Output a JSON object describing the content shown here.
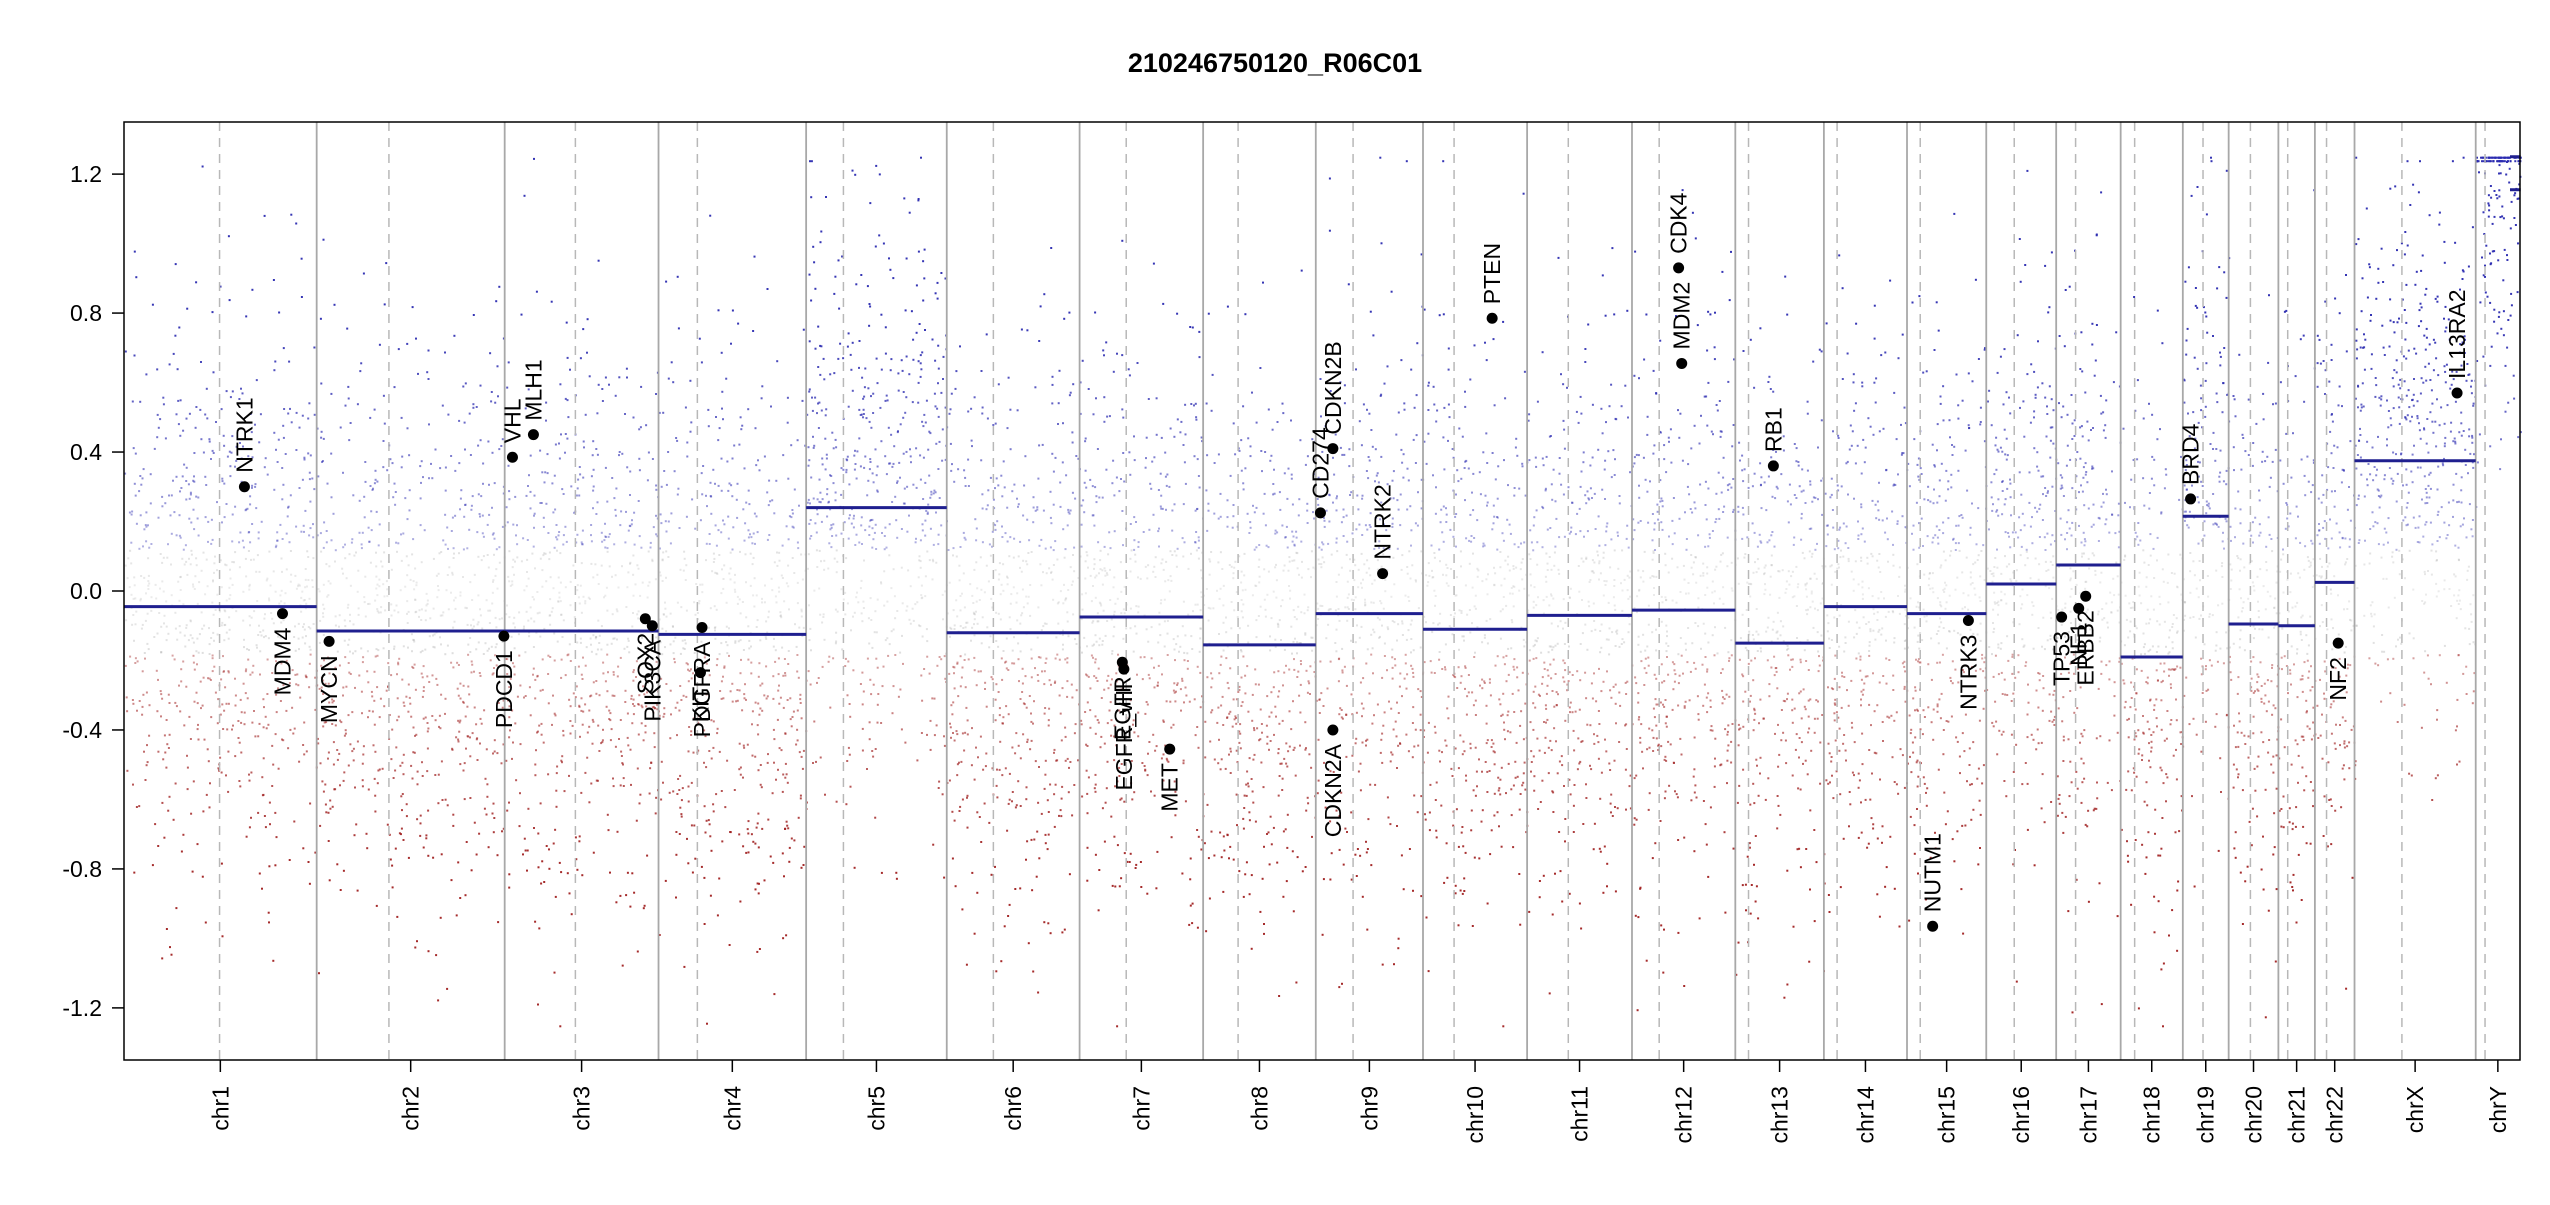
{
  "chart_data": {
    "type": "scatter",
    "title": "210246750120_R06C01",
    "xlabel": "",
    "ylabel": "",
    "ylim": [
      -1.35,
      1.35
    ],
    "y_ticks": [
      {
        "value": 1.2,
        "label": "1.2"
      },
      {
        "value": 0.8,
        "label": "0.8"
      },
      {
        "value": 0.4,
        "label": "0.4"
      },
      {
        "value": 0.0,
        "label": "0.0"
      },
      {
        "value": -0.4,
        "label": "-0.4"
      },
      {
        "value": -0.8,
        "label": "-0.8"
      },
      {
        "value": -1.2,
        "label": "-1.2"
      }
    ],
    "point_colors": {
      "gain": "#2a2ab0",
      "neutral": "#b0b0b0",
      "loss": "#a02020"
    },
    "segment_color": "#1f1f8f",
    "chromosomes": [
      {
        "name": "chr1",
        "start": 0,
        "end": 248,
        "centromere": 123,
        "segments": [
          {
            "s": 0,
            "e": 248,
            "v": -0.045
          }
        ]
      },
      {
        "name": "chr2",
        "start": 248,
        "end": 490,
        "centromere": 341,
        "segments": [
          {
            "s": 248,
            "e": 490,
            "v": -0.115
          }
        ]
      },
      {
        "name": "chr3",
        "start": 490,
        "end": 688,
        "centromere": 581,
        "segments": [
          {
            "s": 490,
            "e": 688,
            "v": -0.115
          }
        ]
      },
      {
        "name": "chr4",
        "start": 688,
        "end": 878,
        "centromere": 738,
        "segments": [
          {
            "s": 688,
            "e": 878,
            "v": -0.125
          }
        ]
      },
      {
        "name": "chr5",
        "start": 878,
        "end": 1059,
        "centromere": 926,
        "segments": [
          {
            "s": 878,
            "e": 1059,
            "v": 0.24
          }
        ]
      },
      {
        "name": "chr6",
        "start": 1059,
        "end": 1230,
        "centromere": 1119,
        "segments": [
          {
            "s": 1059,
            "e": 1230,
            "v": -0.12
          }
        ]
      },
      {
        "name": "chr7",
        "start": 1230,
        "end": 1389,
        "centromere": 1290,
        "segments": [
          {
            "s": 1230,
            "e": 1389,
            "v": -0.075
          }
        ]
      },
      {
        "name": "chr8",
        "start": 1389,
        "end": 1534,
        "centromere": 1434,
        "segments": [
          {
            "s": 1389,
            "e": 1534,
            "v": -0.155
          }
        ]
      },
      {
        "name": "chr9",
        "start": 1534,
        "end": 1672,
        "centromere": 1582,
        "segments": [
          {
            "s": 1534,
            "e": 1672,
            "v": -0.065
          }
        ]
      },
      {
        "name": "chr10",
        "start": 1672,
        "end": 1806,
        "centromere": 1712,
        "segments": [
          {
            "s": 1672,
            "e": 1806,
            "v": -0.11
          }
        ]
      },
      {
        "name": "chr11",
        "start": 1806,
        "end": 1941,
        "centromere": 1859,
        "segments": [
          {
            "s": 1806,
            "e": 1941,
            "v": -0.07
          }
        ]
      },
      {
        "name": "chr12",
        "start": 1941,
        "end": 2074,
        "centromere": 1976,
        "segments": [
          {
            "s": 1941,
            "e": 2074,
            "v": -0.055
          }
        ]
      },
      {
        "name": "chr13",
        "start": 2074,
        "end": 2188,
        "centromere": 2091,
        "segments": [
          {
            "s": 2074,
            "e": 2188,
            "v": -0.15
          }
        ]
      },
      {
        "name": "chr14",
        "start": 2188,
        "end": 2295,
        "centromere": 2205,
        "segments": [
          {
            "s": 2188,
            "e": 2295,
            "v": -0.045
          }
        ]
      },
      {
        "name": "chr15",
        "start": 2295,
        "end": 2397,
        "centromere": 2312,
        "segments": [
          {
            "s": 2295,
            "e": 2397,
            "v": -0.065
          }
        ]
      },
      {
        "name": "chr16",
        "start": 2397,
        "end": 2487,
        "centromere": 2433,
        "segments": [
          {
            "s": 2397,
            "e": 2487,
            "v": 0.02
          }
        ]
      },
      {
        "name": "chr17",
        "start": 2487,
        "end": 2570,
        "centromere": 2512,
        "segments": [
          {
            "s": 2487,
            "e": 2570,
            "v": 0.075
          }
        ]
      },
      {
        "name": "chr18",
        "start": 2570,
        "end": 2650,
        "centromere": 2588,
        "segments": [
          {
            "s": 2570,
            "e": 2650,
            "v": -0.19
          }
        ]
      },
      {
        "name": "chr19",
        "start": 2650,
        "end": 2709,
        "centromere": 2676,
        "segments": [
          {
            "s": 2650,
            "e": 2709,
            "v": 0.215
          }
        ]
      },
      {
        "name": "chr20",
        "start": 2709,
        "end": 2773,
        "centromere": 2737,
        "segments": [
          {
            "s": 2709,
            "e": 2773,
            "v": -0.095
          }
        ]
      },
      {
        "name": "chr21",
        "start": 2773,
        "end": 2820,
        "centromere": 2785,
        "segments": [
          {
            "s": 2773,
            "e": 2820,
            "v": -0.1
          }
        ]
      },
      {
        "name": "chr22",
        "start": 2820,
        "end": 2871,
        "centromere": 2835,
        "segments": [
          {
            "s": 2820,
            "e": 2871,
            "v": 0.025
          }
        ]
      },
      {
        "name": "chrX",
        "start": 2871,
        "end": 3027,
        "centromere": 2932,
        "segments": [
          {
            "s": 2871,
            "e": 3027,
            "v": 0.375
          }
        ]
      },
      {
        "name": "chrY",
        "start": 3027,
        "end": 3084,
        "centromere": 3039,
        "segments": [
          {
            "s": 3027,
            "e": 3084,
            "v": 1.25
          },
          {
            "s": 3027,
            "e": 3084,
            "v": 1.155
          }
        ]
      }
    ],
    "genes": [
      {
        "name": "NTRK1",
        "pos": 155,
        "value": 0.3,
        "label_side": "above"
      },
      {
        "name": "MDM4",
        "pos": 204,
        "value": -0.065,
        "label_side": "below"
      },
      {
        "name": "MYCN",
        "pos": 264,
        "value": -0.145,
        "label_side": "below"
      },
      {
        "name": "VHL",
        "pos": 500,
        "value": 0.385,
        "label_side": "above"
      },
      {
        "name": "MLH1",
        "pos": 527,
        "value": 0.45,
        "label_side": "above"
      },
      {
        "name": "PDCD1",
        "pos": 489,
        "value": -0.13,
        "label_side": "below"
      },
      {
        "name": "SOX2",
        "pos": 671,
        "value": -0.08,
        "label_side": "below"
      },
      {
        "name": "PIK3CA",
        "pos": 680,
        "value": -0.1,
        "label_side": "below"
      },
      {
        "name": "PDGFRA",
        "pos": 744,
        "value": -0.105,
        "label_side": "below"
      },
      {
        "name": "KIT",
        "pos": 742,
        "value": -0.235,
        "label_side": "below"
      },
      {
        "name": "EGFR",
        "pos": 1285,
        "value": -0.205,
        "label_side": "below"
      },
      {
        "name": "EGFR_vIII",
        "pos": 1287,
        "value": -0.225,
        "label_side": "below"
      },
      {
        "name": "MET",
        "pos": 1346,
        "value": -0.455,
        "label_side": "below"
      },
      {
        "name": "CD274",
        "pos": 1540,
        "value": 0.225,
        "label_side": "above"
      },
      {
        "name": "CDKN2B",
        "pos": 1556,
        "value": 0.41,
        "label_side": "above"
      },
      {
        "name": "CDKN2A",
        "pos": 1556,
        "value": -0.4,
        "label_side": "below"
      },
      {
        "name": "NTRK2",
        "pos": 1620,
        "value": 0.05,
        "label_side": "above"
      },
      {
        "name": "PTEN",
        "pos": 1761,
        "value": 0.785,
        "label_side": "above"
      },
      {
        "name": "CDK4",
        "pos": 2001,
        "value": 0.93,
        "label_side": "above"
      },
      {
        "name": "MDM2",
        "pos": 2005,
        "value": 0.655,
        "label_side": "above"
      },
      {
        "name": "RB1",
        "pos": 2123,
        "value": 0.36,
        "label_side": "above"
      },
      {
        "name": "NUTM1",
        "pos": 2328,
        "value": -0.965,
        "label_side": "above"
      },
      {
        "name": "NTRK3",
        "pos": 2374,
        "value": -0.085,
        "label_side": "below"
      },
      {
        "name": "TP53",
        "pos": 2494,
        "value": -0.075,
        "label_side": "below"
      },
      {
        "name": "NF1",
        "pos": 2516,
        "value": -0.05,
        "label_side": "below"
      },
      {
        "name": "ERBB2",
        "pos": 2525,
        "value": -0.015,
        "label_side": "below"
      },
      {
        "name": "BRD4",
        "pos": 2660,
        "value": 0.265,
        "label_side": "above"
      },
      {
        "name": "NF2",
        "pos": 2850,
        "value": -0.15,
        "label_side": "below"
      },
      {
        "name": "IL13RA2",
        "pos": 3003,
        "value": 0.57,
        "label_side": "above"
      }
    ]
  }
}
